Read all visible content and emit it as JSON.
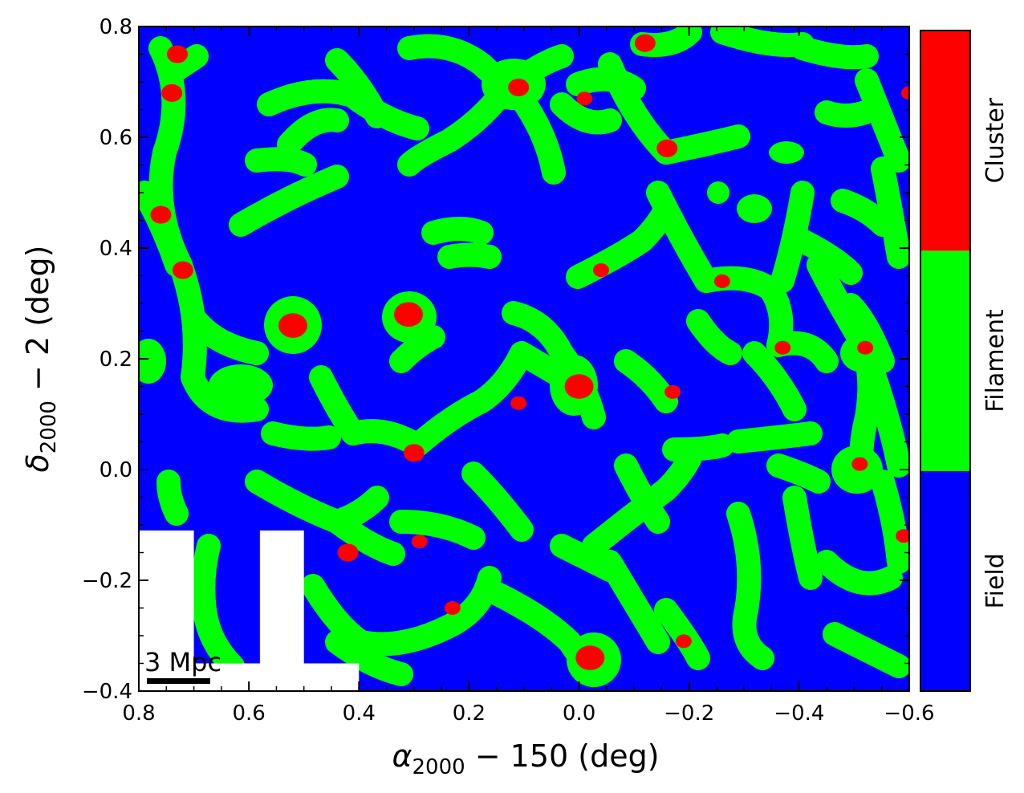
{
  "chart_data": {
    "type": "heatmap",
    "title": "",
    "xlabel": {
      "main": "α",
      "sub": "2000",
      "rest": " − 150 (deg)"
    },
    "ylabel": {
      "main": "δ",
      "sub": "2000",
      "rest": " − 2 (deg)"
    },
    "xlim": [
      0.8,
      -0.6
    ],
    "ylim": [
      -0.4,
      0.8
    ],
    "x_ticks": [
      0.8,
      0.6,
      0.4,
      0.2,
      0.0,
      -0.2,
      -0.4,
      -0.6
    ],
    "x_tick_labels": [
      "0.8",
      "0.6",
      "0.4",
      "0.2",
      "0.0",
      "−0.2",
      "−0.4",
      "−0.6"
    ],
    "y_ticks": [
      -0.4,
      -0.2,
      0.0,
      0.2,
      0.4,
      0.6,
      0.8
    ],
    "y_tick_labels": [
      "−0.4",
      "−0.2",
      "0.0",
      "0.2",
      "0.4",
      "0.6",
      "0.8"
    ],
    "grid": false,
    "colorbar": {
      "position": "right",
      "categories": [
        {
          "name": "Field",
          "color": "#0000ff"
        },
        {
          "name": "Filament",
          "color": "#00ff00"
        },
        {
          "name": "Cluster",
          "color": "#ff0000"
        }
      ]
    },
    "scale_bar": {
      "label": "3 Mpc",
      "length_deg": 0.115
    },
    "masked_regions": [
      {
        "x": [
          0.8,
          0.7
        ],
        "y": [
          -0.4,
          -0.11
        ]
      },
      {
        "x": [
          0.58,
          0.5
        ],
        "y": [
          -0.35,
          -0.11
        ]
      },
      {
        "x": [
          0.7,
          0.4
        ],
        "y": [
          -0.4,
          -0.35
        ]
      }
    ],
    "clusters": [
      {
        "x": 0.52,
        "y": 0.26
      },
      {
        "x": 0.31,
        "y": 0.28
      },
      {
        "x": 0.0,
        "y": 0.15
      },
      {
        "x": -0.02,
        "y": -0.34
      },
      {
        "x": 0.11,
        "y": 0.69
      },
      {
        "x": 0.72,
        "y": 0.36
      },
      {
        "x": 0.76,
        "y": 0.46
      },
      {
        "x": 0.74,
        "y": 0.68
      },
      {
        "x": 0.73,
        "y": 0.75
      },
      {
        "x": -0.16,
        "y": 0.58
      },
      {
        "x": -0.12,
        "y": 0.77
      },
      {
        "x": 0.42,
        "y": -0.15
      },
      {
        "x": 0.3,
        "y": 0.03
      },
      {
        "x": 0.23,
        "y": -0.25
      },
      {
        "x": -0.37,
        "y": 0.22
      },
      {
        "x": -0.51,
        "y": 0.01
      },
      {
        "x": -0.52,
        "y": 0.22
      },
      {
        "x": -0.59,
        "y": -0.12
      },
      {
        "x": -0.6,
        "y": 0.68
      },
      {
        "x": -0.04,
        "y": 0.36
      },
      {
        "x": -0.26,
        "y": 0.34
      },
      {
        "x": 0.29,
        "y": -0.13
      },
      {
        "x": 0.11,
        "y": 0.12
      },
      {
        "x": -0.17,
        "y": 0.14
      },
      {
        "x": -0.19,
        "y": -0.31
      },
      {
        "x": -0.01,
        "y": 0.67
      }
    ]
  }
}
